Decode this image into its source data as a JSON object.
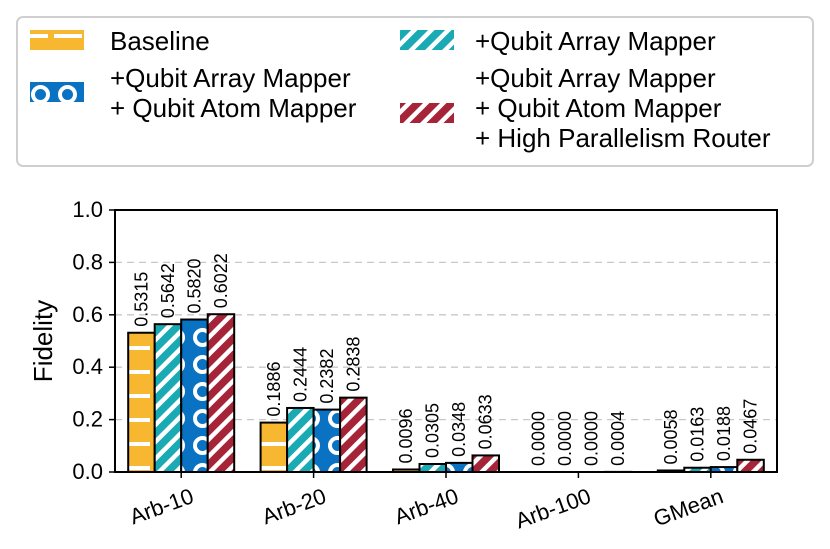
{
  "chart_data": {
    "type": "bar",
    "title": "",
    "xlabel": "",
    "ylabel": "Fidelity",
    "ylim": [
      0,
      1.0
    ],
    "yticks": [
      "0.0",
      "0.2",
      "0.4",
      "0.6",
      "0.8",
      "1.0"
    ],
    "grid": "horizontal dashed",
    "legend_position": "top",
    "categories": [
      "Arb-10",
      "Arb-20",
      "Arb-40",
      "Arb-100",
      "GMean"
    ],
    "series": [
      {
        "name_lines": [
          "Baseline"
        ],
        "color": "#f7b731",
        "hatch": "dash",
        "values": [
          0.5315,
          0.1886,
          0.0096,
          0.0,
          0.0058
        ],
        "labels": [
          "0.5315",
          "0.1886",
          "0.0096",
          "0.0000",
          "0.0058"
        ]
      },
      {
        "name_lines": [
          "+Qubit Array Mapper"
        ],
        "color": "#1aaab4",
        "hatch": "diagonal",
        "values": [
          0.5642,
          0.2444,
          0.0305,
          0.0,
          0.0163
        ],
        "labels": [
          "0.5642",
          "0.2444",
          "0.0305",
          "0.0000",
          "0.0163"
        ]
      },
      {
        "name_lines": [
          "+Qubit Array Mapper",
          "+ Qubit Atom Mapper"
        ],
        "color": "#0a72c2",
        "hatch": "circle",
        "values": [
          0.582,
          0.2382,
          0.0348,
          0.0,
          0.0188
        ],
        "labels": [
          "0.5820",
          "0.2382",
          "0.0348",
          "0.0000",
          "0.0188"
        ]
      },
      {
        "name_lines": [
          "+Qubit Array Mapper",
          "+ Qubit Atom Mapper",
          "+ High Parallelism Router"
        ],
        "color": "#a52438",
        "hatch": "diagonal",
        "values": [
          0.6022,
          0.2838,
          0.0633,
          0.0004,
          0.0467
        ],
        "labels": [
          "0.6022",
          "0.2838",
          "0.0633",
          "0.0004",
          "0.0467"
        ]
      }
    ]
  }
}
